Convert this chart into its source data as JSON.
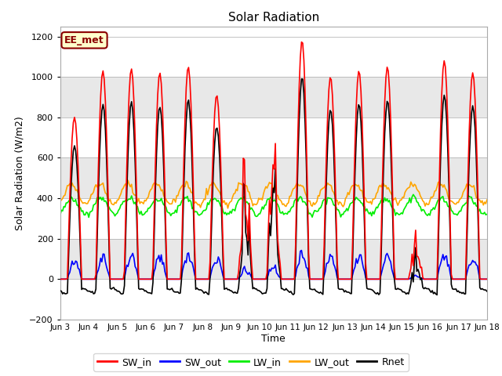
{
  "title": "Solar Radiation",
  "xlabel": "Time",
  "ylabel": "Solar Radiation (W/m2)",
  "ylim": [
    -200,
    1250
  ],
  "yticks": [
    -200,
    0,
    200,
    400,
    600,
    800,
    1000,
    1200
  ],
  "n_days": 15,
  "hours_per_day": 24,
  "day_labels": [
    "Jun 3",
    "Jun 4",
    "Jun 5",
    "Jun 6",
    "Jun 7",
    "Jun 8",
    "Jun 9",
    "Jun 10",
    "Jun 11",
    "Jun 12",
    "Jun 13",
    "Jun 14",
    "Jun 15",
    "Jun 16",
    "Jun 17",
    "Jun 18"
  ],
  "colors": {
    "SW_in": "#ff0000",
    "SW_out": "#0000ff",
    "LW_in": "#00ee00",
    "LW_out": "#ffa500",
    "Rnet": "#000000"
  },
  "annotation_text": "EE_met",
  "annotation_bg": "#ffffcc",
  "annotation_border": "#8b0000",
  "legend_labels": [
    "SW_in",
    "SW_out",
    "LW_in",
    "LW_out",
    "Rnet"
  ],
  "legend_colors": [
    "#ff0000",
    "#0000ff",
    "#00ee00",
    "#ffa500",
    "#000000"
  ],
  "bg_band_color": "#e8e8e8",
  "day_peaks_sw_in": [
    800,
    1030,
    1040,
    1020,
    1050,
    910,
    760,
    800,
    1180,
    1000,
    1030,
    1050,
    250,
    1080,
    1020
  ],
  "day_cloudy": [
    false,
    false,
    false,
    false,
    false,
    false,
    true,
    true,
    false,
    false,
    false,
    false,
    true,
    false,
    false
  ]
}
